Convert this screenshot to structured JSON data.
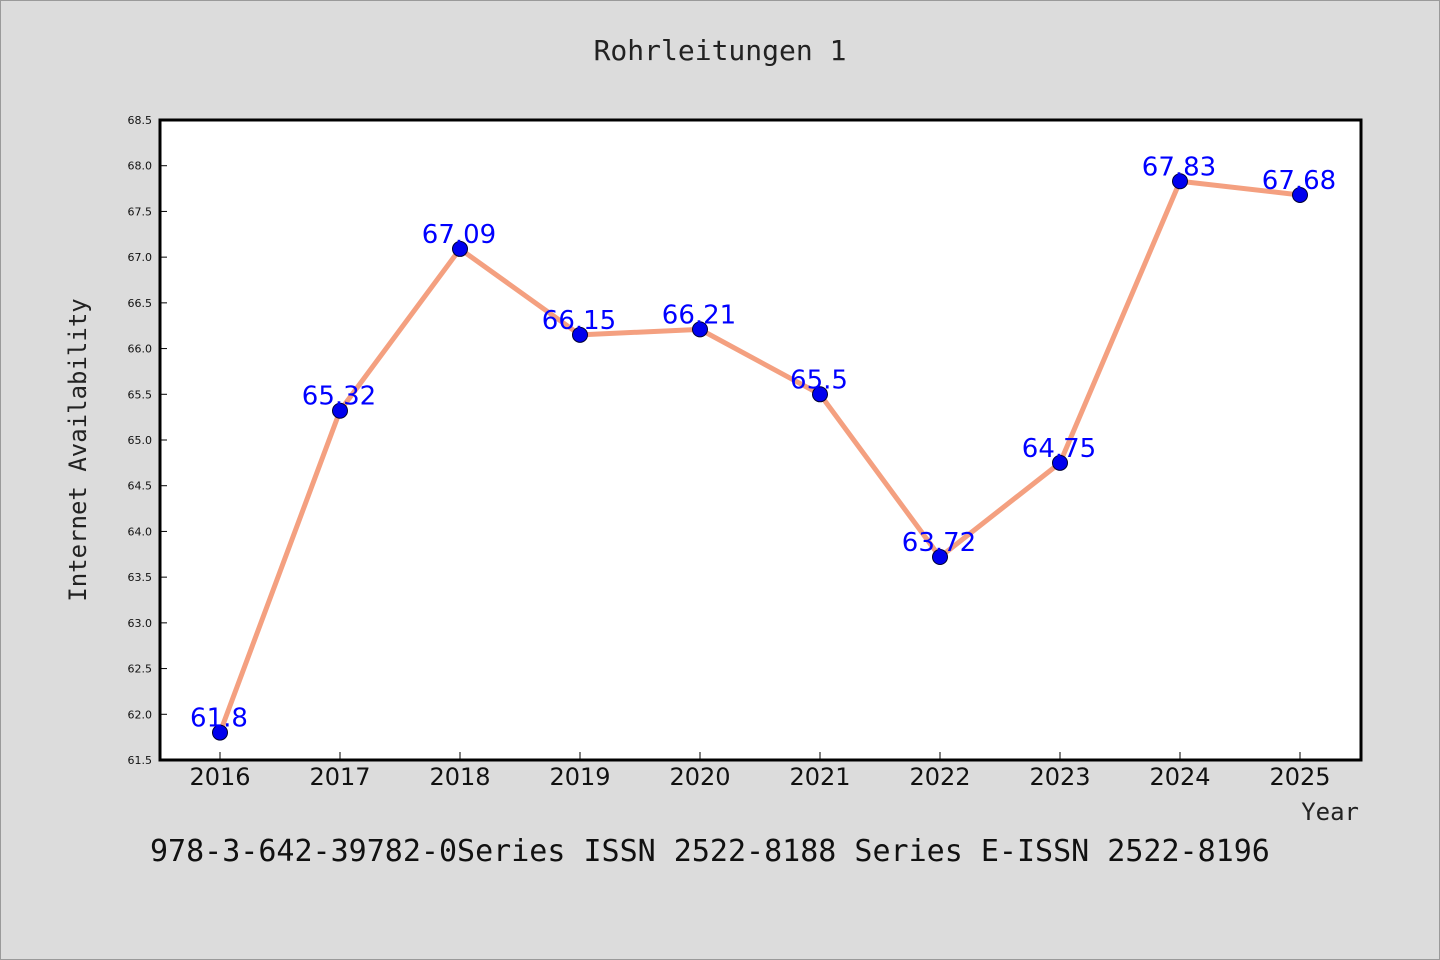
{
  "title": "Rohrleitungen 1",
  "footer": "978-3-642-39782-0Series ISSN 2522-8188 Series E-ISSN 2522-8196",
  "chart_data": {
    "type": "line",
    "title": "Rohrleitungen 1",
    "xlabel": "Year",
    "ylabel": "Internet Availability",
    "categories": [
      "2016",
      "2017",
      "2018",
      "2019",
      "2020",
      "2021",
      "2022",
      "2023",
      "2024",
      "2025"
    ],
    "series": [
      {
        "values": [
          61.8,
          65.32,
          67.09,
          66.15,
          66.21,
          65.5,
          63.72,
          64.75,
          67.83,
          67.68
        ],
        "data_labels": [
          "61.8",
          "65.32",
          "67.09",
          "66.15",
          "66.21",
          "65.5",
          "63.72",
          "64.75",
          "67.83",
          "67.68"
        ]
      }
    ],
    "ylim": [
      61.5,
      68.5
    ],
    "yticks": [
      "61.5",
      "62.0",
      "62.5",
      "63.0",
      "63.5",
      "64.0",
      "64.5",
      "65.0",
      "65.5",
      "66.0",
      "66.5",
      "67.0",
      "67.5",
      "68.0",
      "68.5"
    ],
    "grid": false,
    "colors": {
      "line": "#f4a080",
      "marker": "#0000ee",
      "label": "#0000ff",
      "plot_bg": "#ffffff"
    }
  }
}
